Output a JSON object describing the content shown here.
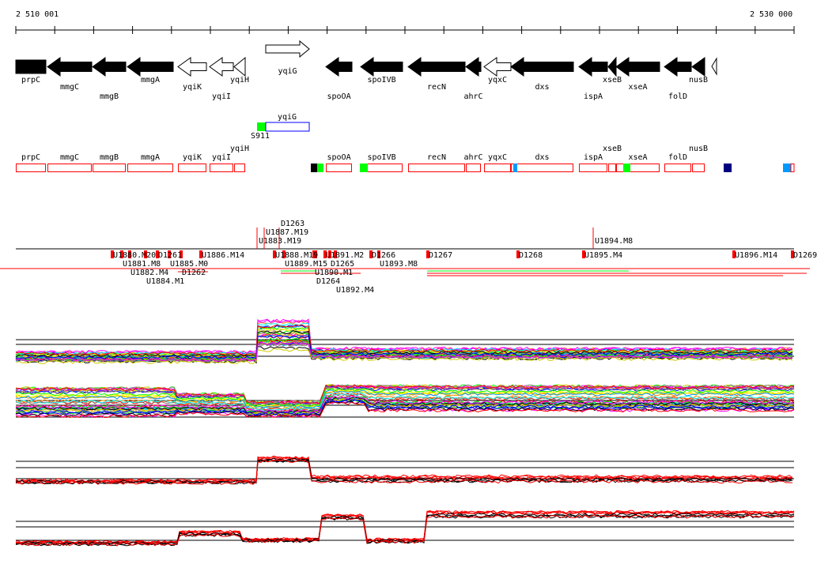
{
  "ruler": {
    "start_label": "2 510 001",
    "end_label": "2 530 000"
  },
  "colors": {
    "gene_fill": "#000000",
    "box_outline": "#ff0000",
    "promoter_green": "#00ff00",
    "blue": "#0099ff",
    "navy": "#000080",
    "yqiG_box": "#0000ff"
  },
  "genes": [
    {
      "name": "prpC",
      "strand": "-",
      "filled": true
    },
    {
      "name": "mmgC",
      "strand": "-",
      "filled": true
    },
    {
      "name": "mmgB",
      "strand": "-",
      "filled": true
    },
    {
      "name": "mmgA",
      "strand": "-",
      "filled": true
    },
    {
      "name": "yqiK",
      "strand": "-",
      "filled": false
    },
    {
      "name": "yqiI",
      "strand": "-",
      "filled": false
    },
    {
      "name": "yqiH",
      "strand": "-",
      "filled": false
    },
    {
      "name": "yqiG",
      "strand": "+",
      "filled": false
    },
    {
      "name": "spoOA",
      "strand": "-",
      "filled": true
    },
    {
      "name": "spoIVB",
      "strand": "-",
      "filled": true
    },
    {
      "name": "recN",
      "strand": "-",
      "filled": true
    },
    {
      "name": "ahrC",
      "strand": "-",
      "filled": true
    },
    {
      "name": "yqxC",
      "strand": "-",
      "filled": false
    },
    {
      "name": "dxs",
      "strand": "-",
      "filled": true
    },
    {
      "name": "ispA",
      "strand": "-",
      "filled": true
    },
    {
      "name": "xseB",
      "strand": "-",
      "filled": true
    },
    {
      "name": "xseA",
      "strand": "-",
      "filled": true
    },
    {
      "name": "folD",
      "strand": "-",
      "filled": true
    },
    {
      "name": "nusB",
      "strand": "-",
      "filled": true
    }
  ],
  "sense_feature": {
    "gene": "yqiG",
    "site": "S911"
  },
  "operon_labels": [
    "prpC",
    "mmgC",
    "mmgB",
    "mmgA",
    "yqiK",
    "yqiI",
    "yqiH",
    "spoOA",
    "spoIVB",
    "recN",
    "ahrC",
    "yqxC",
    "dxs",
    "ispA",
    "xseB",
    "xseA",
    "folD",
    "nusB"
  ],
  "segments_upper": [
    "U1883.M19",
    "U1887.M19",
    "D1263",
    "U1894.M8"
  ],
  "segments_lower": [
    "U1880.M20",
    "U1881.M8",
    "U1882.M4",
    "U1884.M1",
    "D1261",
    "D1262",
    "U1885.M0",
    "U1886.M14",
    "U1888.M19",
    "U1889.M15",
    "D1264",
    "D1265",
    "U1890.M1",
    "U1891.M2",
    "U1892.M4",
    "D1266",
    "U1893.M8",
    "D1267",
    "D1268",
    "U1895.M4",
    "U1896.M14",
    "D1269"
  ]
}
